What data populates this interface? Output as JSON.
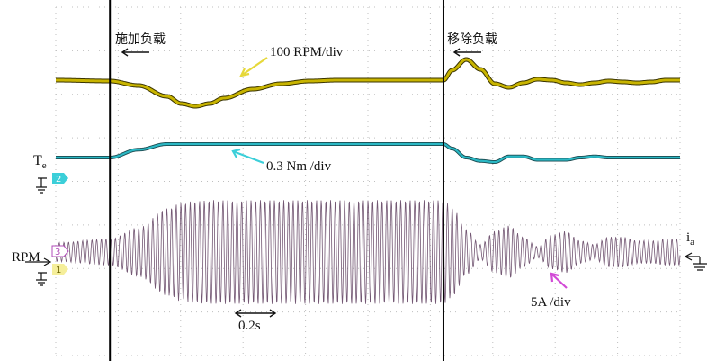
{
  "chart_data": {
    "type": "line",
    "x_unit_label": "0.2s",
    "events": [
      {
        "label": "施加负载",
        "t": 0.0
      },
      {
        "label": "移除负载",
        "t": 1.17
      }
    ],
    "x": [
      -0.19,
      0.0,
      0.1,
      0.2,
      0.25,
      0.3,
      0.35,
      0.4,
      0.5,
      0.6,
      0.7,
      0.8,
      0.9,
      1.0,
      1.1,
      1.17,
      1.2,
      1.25,
      1.3,
      1.35,
      1.4,
      1.45,
      1.5,
      1.55,
      1.6,
      1.65,
      1.7,
      1.75,
      1.8,
      1.85,
      1.9,
      1.95,
      2.0
    ],
    "series": [
      {
        "name": "100 RPM/div",
        "color": "#c8b400",
        "values": [
          0.0,
          -0.05,
          -0.3,
          -0.9,
          -1.3,
          -1.45,
          -1.3,
          -1.0,
          -0.5,
          -0.2,
          -0.05,
          0.0,
          0.0,
          0.0,
          0.0,
          0.0,
          0.55,
          1.15,
          0.6,
          -0.2,
          -0.4,
          -0.15,
          0.05,
          0.0,
          -0.15,
          -0.25,
          -0.15,
          -0.05,
          -0.1,
          -0.15,
          -0.1,
          0.0,
          0.0
        ]
      },
      {
        "name": "0.3 Nm /div",
        "color": "#2ab8c4",
        "values": [
          0.0,
          0.0,
          0.35,
          0.6,
          0.6,
          0.6,
          0.6,
          0.6,
          0.6,
          0.6,
          0.6,
          0.6,
          0.6,
          0.6,
          0.6,
          0.6,
          0.4,
          0.0,
          -0.15,
          -0.2,
          0.05,
          0.05,
          -0.1,
          -0.1,
          -0.1,
          0.0,
          0.05,
          0.0,
          0.0,
          0.0,
          0.0,
          0.0,
          0.0
        ]
      },
      {
        "name": "5A /div",
        "color": "#7a4a7a",
        "envelope": [
          0.5,
          0.7,
          1.3,
          2.3,
          2.6,
          2.7,
          2.75,
          2.75,
          2.75,
          2.75,
          2.75,
          2.75,
          2.75,
          2.75,
          2.75,
          2.75,
          2.4,
          1.2,
          0.4,
          1.1,
          1.4,
          0.8,
          0.3,
          0.9,
          1.1,
          0.6,
          0.4,
          0.8,
          0.8,
          0.6,
          0.6,
          0.7,
          0.7
        ]
      }
    ],
    "annotations": [
      {
        "text": "100 RPM/div"
      },
      {
        "text": "0.3 Nm /div"
      },
      {
        "text": "5A /div"
      },
      {
        "text": "0.2s"
      }
    ],
    "channel_markers": [
      "2",
      "3",
      "1"
    ],
    "signal_labels": {
      "te": "T",
      "te_sub": "e",
      "rpm": "RPM",
      "ia": "i",
      "ia_sub": "a"
    },
    "grid": true
  }
}
